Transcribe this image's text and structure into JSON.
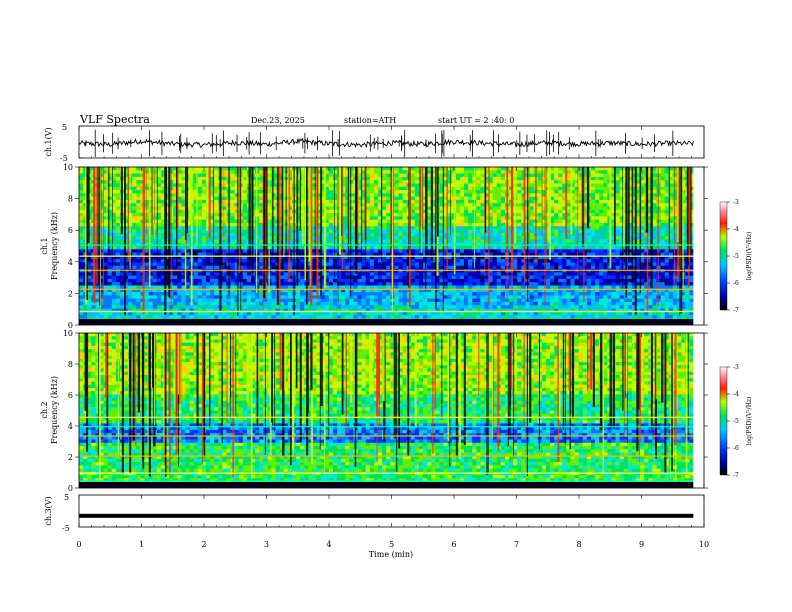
{
  "header": {
    "title": "VLF  Spectra",
    "date": "Dec.23, 2025",
    "station": "station=ATH",
    "start": "start  UT  =   2 :40: 0"
  },
  "chart_data": [
    {
      "type": "line",
      "panel": "ch1-waveform",
      "ylabel": "ch.1(V)",
      "ylim": [
        -5,
        5
      ],
      "yticks": [
        5,
        -5
      ],
      "description_values_level": -0.3,
      "x": [
        0,
        0.5,
        1,
        1.5,
        2,
        2.5,
        3,
        3.5,
        4,
        4.5,
        5,
        5.5,
        6,
        6.5,
        7,
        7.5,
        8,
        8.5,
        9,
        9.5,
        9.8
      ],
      "values": [
        -0.4,
        -0.8,
        0.3,
        -0.6,
        -0.9,
        -0.2,
        -0.7,
        0.2,
        -0.5,
        -0.9,
        -0.3,
        -0.7,
        0.1,
        -0.4,
        -0.8,
        -0.2,
        -0.6,
        -0.3,
        -0.7,
        -0.4,
        -0.5
      ]
    },
    {
      "type": "heatmap",
      "panel": "ch1-spectrogram",
      "ylabel": "ch.1\nFrequency  (kHz)",
      "ylabel_channel": "ch.1",
      "ylabel_freq": "Frequency  (kHz)",
      "ylim": [
        0,
        10
      ],
      "yticks": [
        0,
        2,
        4,
        6,
        8,
        10
      ],
      "colorbar": {
        "label": "log(PSD)(V²/Hz)",
        "range": [
          -7,
          -3
        ],
        "ticks": [
          -3,
          -4,
          -5,
          -6,
          -7
        ]
      }
    },
    {
      "type": "heatmap",
      "panel": "ch2-spectrogram",
      "ylabel_channel": "ch.2",
      "ylabel_freq": "Frequency  (kHz)",
      "ylim": [
        0,
        10
      ],
      "yticks": [
        0,
        2,
        4,
        6,
        8,
        10
      ],
      "colorbar": {
        "label": "log(PSD)(V²/Hz)",
        "range": [
          -7,
          -3
        ],
        "ticks": [
          -3,
          -4,
          -5,
          -6,
          -7
        ]
      }
    },
    {
      "type": "line",
      "panel": "ch3-waveform",
      "ylabel": "ch.3(V)",
      "ylim": [
        -5,
        5
      ],
      "yticks": [
        5,
        -5
      ],
      "x": [
        0,
        9.8
      ],
      "values": [
        -1.5,
        -1.5
      ]
    }
  ],
  "xaxis": {
    "label": "Time  (min)",
    "xlim": [
      0,
      10
    ],
    "ticks": [
      "0",
      "1",
      "2",
      "3",
      "4",
      "5",
      "6",
      "7",
      "8",
      "9",
      "10"
    ]
  }
}
